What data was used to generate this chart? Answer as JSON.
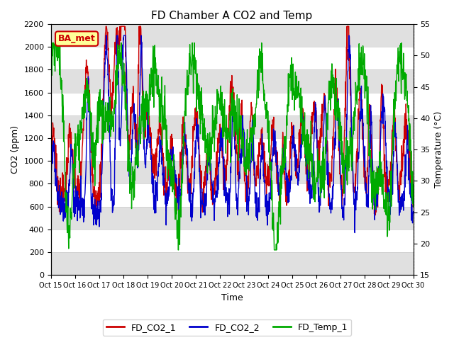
{
  "title": "FD Chamber A CO2 and Temp",
  "xlabel": "Time",
  "ylabel_left": "CO2 (ppm)",
  "ylabel_right": "Temperature (°C)",
  "ylim_left": [
    0,
    2200
  ],
  "ylim_right": [
    15,
    55
  ],
  "yticks_left": [
    0,
    200,
    400,
    600,
    800,
    1000,
    1200,
    1400,
    1600,
    1800,
    2000,
    2200
  ],
  "yticks_right": [
    15,
    20,
    25,
    30,
    35,
    40,
    45,
    50,
    55
  ],
  "xtick_labels": [
    "Oct 15",
    "Oct 16",
    "Oct 17",
    "Oct 18",
    "Oct 19",
    "Oct 20",
    "Oct 21",
    "Oct 22",
    "Oct 23",
    "Oct 24",
    "Oct 25",
    "Oct 26",
    "Oct 27",
    "Oct 28",
    "Oct 29",
    "Oct 30"
  ],
  "color_co2_1": "#cc0000",
  "color_co2_2": "#0000cc",
  "color_temp": "#00aa00",
  "legend_labels": [
    "FD_CO2_1",
    "FD_CO2_2",
    "FD_Temp_1"
  ],
  "annotation_text": "BA_met",
  "annotation_bg": "#ffff99",
  "annotation_border": "#cc0000",
  "band_color": "#e0e0e0",
  "line_width": 1.0,
  "figsize": [
    6.4,
    4.8
  ],
  "dpi": 100
}
